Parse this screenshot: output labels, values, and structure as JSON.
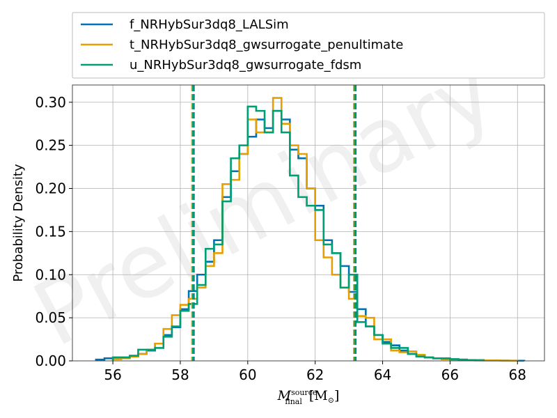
{
  "chart_data": {
    "type": "histogram",
    "xlabel": "M_final^source [M_⊙]",
    "xlabel_parts": {
      "symbol": "M",
      "sup": "source",
      "sub": "final",
      "unit": "[M",
      "unit_sub": "⊙",
      "unit_close": "]"
    },
    "ylabel": "Probability Density",
    "xlim": [
      54.8,
      68.8
    ],
    "ylim": [
      0.0,
      0.32
    ],
    "xticks": [
      56,
      58,
      60,
      62,
      64,
      66,
      68
    ],
    "yticks": [
      0.0,
      0.05,
      0.1,
      0.15,
      0.2,
      0.25,
      0.3
    ],
    "ytick_labels": [
      "0.00",
      "0.05",
      "0.10",
      "0.15",
      "0.20",
      "0.25",
      "0.30"
    ],
    "grid": true,
    "legend_position": "top (above plot)",
    "watermark": "Preliminary",
    "series": [
      {
        "name": "f_NRHybSur3dq8_LALSim",
        "color": "#0072B2",
        "edges": [
          55.5,
          55.75,
          56.0,
          56.25,
          56.5,
          56.75,
          57.0,
          57.25,
          57.5,
          57.75,
          58.0,
          58.25,
          58.5,
          58.75,
          59.0,
          59.25,
          59.5,
          59.75,
          60.0,
          60.25,
          60.5,
          60.75,
          61.0,
          61.25,
          61.5,
          61.75,
          62.0,
          62.25,
          62.5,
          62.75,
          63.0,
          63.25,
          63.5,
          63.75,
          64.0,
          64.25,
          64.5,
          64.75,
          65.0,
          65.25,
          65.5,
          65.75,
          66.0,
          66.25,
          66.5,
          66.75,
          67.0,
          67.25,
          67.5,
          67.75,
          68.0,
          68.2
        ],
        "density": [
          0.0015,
          0.003,
          0.004,
          0.004,
          0.005,
          0.008,
          0.012,
          0.02,
          0.03,
          0.039,
          0.06,
          0.081,
          0.1,
          0.115,
          0.14,
          0.19,
          0.22,
          0.24,
          0.26,
          0.28,
          0.27,
          0.29,
          0.28,
          0.245,
          0.235,
          0.2,
          0.18,
          0.14,
          0.125,
          0.11,
          0.08,
          0.06,
          0.04,
          0.03,
          0.022,
          0.018,
          0.012,
          0.008,
          0.006,
          0.004,
          0.003,
          0.002,
          0.002,
          0.0015,
          0.001,
          0.001,
          0.0005,
          0.0005,
          0.0004,
          0.0003,
          0.0002
        ],
        "ci_lines": [
          58.4,
          63.2
        ]
      },
      {
        "name": "t_NRHybSur3dq8_gwsurrogate_penultimate",
        "color": "#E69F00",
        "edges": [
          56.0,
          56.25,
          56.5,
          56.75,
          57.0,
          57.25,
          57.5,
          57.75,
          58.0,
          58.25,
          58.5,
          58.75,
          59.0,
          59.25,
          59.5,
          59.75,
          60.0,
          60.25,
          60.5,
          60.75,
          61.0,
          61.25,
          61.5,
          61.75,
          62.0,
          62.25,
          62.5,
          62.75,
          63.0,
          63.25,
          63.5,
          63.75,
          64.0,
          64.25,
          64.5,
          64.75,
          65.0,
          65.25,
          65.5,
          65.75,
          66.0,
          66.25,
          66.5,
          66.75,
          67.0,
          67.25,
          67.5,
          67.75,
          68.0
        ],
        "density": [
          0.002,
          0.003,
          0.005,
          0.008,
          0.013,
          0.02,
          0.037,
          0.053,
          0.065,
          0.072,
          0.085,
          0.11,
          0.125,
          0.205,
          0.21,
          0.24,
          0.28,
          0.265,
          0.265,
          0.305,
          0.275,
          0.25,
          0.24,
          0.2,
          0.14,
          0.12,
          0.1,
          0.085,
          0.072,
          0.052,
          0.05,
          0.025,
          0.025,
          0.012,
          0.01,
          0.011,
          0.007,
          0.004,
          0.003,
          0.002,
          0.0015,
          0.001,
          0.001,
          0.0008,
          0.0005,
          0.0005,
          0.0003,
          0.0002
        ],
        "ci_lines": [
          58.35,
          63.15
        ]
      },
      {
        "name": "u_NRHybSur3dq8_gwsurrogate_fdsm",
        "color": "#009E73",
        "edges": [
          56.0,
          56.25,
          56.5,
          56.75,
          57.0,
          57.25,
          57.5,
          57.75,
          58.0,
          58.25,
          58.5,
          58.75,
          59.0,
          59.25,
          59.5,
          59.75,
          60.0,
          60.25,
          60.5,
          60.75,
          61.0,
          61.25,
          61.5,
          61.75,
          62.0,
          62.25,
          62.5,
          62.75,
          63.0,
          63.25,
          63.5,
          63.75,
          64.0,
          64.25,
          64.5,
          64.75,
          65.0,
          65.25,
          65.5,
          65.75,
          66.0,
          66.25,
          66.5,
          66.75,
          67.0
        ],
        "density": [
          0.004,
          0.004,
          0.006,
          0.013,
          0.013,
          0.015,
          0.028,
          0.04,
          0.058,
          0.066,
          0.088,
          0.13,
          0.135,
          0.185,
          0.235,
          0.25,
          0.295,
          0.29,
          0.265,
          0.29,
          0.265,
          0.215,
          0.19,
          0.18,
          0.175,
          0.135,
          0.125,
          0.085,
          0.1,
          0.045,
          0.04,
          0.03,
          0.02,
          0.015,
          0.015,
          0.008,
          0.005,
          0.004,
          0.003,
          0.003,
          0.002,
          0.0015,
          0.001,
          0.0005
        ],
        "ci_lines": [
          58.38,
          63.18
        ]
      }
    ]
  }
}
